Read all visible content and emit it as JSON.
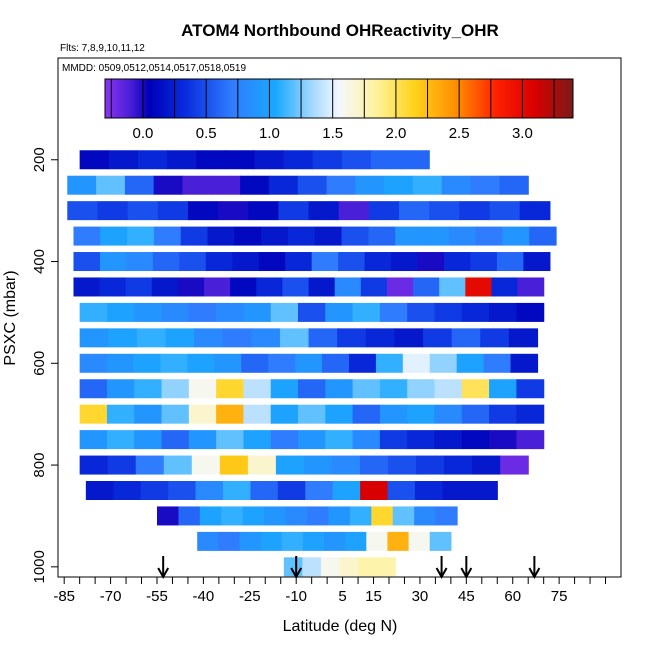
{
  "chart_data": {
    "type": "heatmap",
    "title": "ATOM4 Northbound OHReactivity_OHR",
    "subtitle_flights": "Flts: 7,8,9,10,11,12",
    "subtitle_dates": "MMDD: 0509,0512,0514,0517,0518,0519",
    "xlabel": "Latitude (deg N)",
    "ylabel": "PSXC (mbar)",
    "xlim": [
      -87,
      95
    ],
    "ylim": [
      1020,
      0
    ],
    "xticks": [
      -85,
      -70,
      -55,
      -40,
      -25,
      -10,
      5,
      15,
      30,
      45,
      60,
      75
    ],
    "yticks": [
      200,
      400,
      600,
      800,
      1000
    ],
    "colorbar": {
      "range": [
        -0.3,
        3.4
      ],
      "ticks": [
        0.0,
        0.5,
        1.0,
        1.5,
        2.0,
        2.5,
        3.0
      ],
      "tick_labels": [
        "0.0",
        "0.5",
        "1.0",
        "1.5",
        "2.0",
        "2.5",
        "3.0"
      ],
      "stops": [
        {
          "v": -0.3,
          "c": "#8b35f0"
        },
        {
          "v": -0.1,
          "c": "#4a1fd8"
        },
        {
          "v": 0.05,
          "c": "#0000b8"
        },
        {
          "v": 0.35,
          "c": "#0a2fe0"
        },
        {
          "v": 0.7,
          "c": "#2f7cff"
        },
        {
          "v": 1.05,
          "c": "#1aa8ff"
        },
        {
          "v": 1.35,
          "c": "#a9daff"
        },
        {
          "v": 1.55,
          "c": "#f4f8ff"
        },
        {
          "v": 1.85,
          "c": "#fff29a"
        },
        {
          "v": 2.15,
          "c": "#ffd21a"
        },
        {
          "v": 2.5,
          "c": "#ff8800"
        },
        {
          "v": 2.8,
          "c": "#ff1e00"
        },
        {
          "v": 3.1,
          "c": "#d80000"
        },
        {
          "v": 3.4,
          "c": "#7a1a1a"
        }
      ]
    },
    "arrow_latitudes": [
      -53,
      -10,
      37,
      45,
      67
    ],
    "rows": [
      {
        "p": 200,
        "lat_min": -80,
        "lat_max": 33,
        "values": [
          0.1,
          0.2,
          0.3,
          0.2,
          0.1,
          0.1,
          0.2,
          0.3,
          0.4,
          0.5,
          0.6,
          0.6
        ]
      },
      {
        "p": 250,
        "lat_min": -84,
        "lat_max": 65,
        "values": [
          0.9,
          1.2,
          0.6,
          0.0,
          -0.1,
          -0.1,
          0.1,
          0.3,
          0.5,
          0.7,
          0.9,
          1.0,
          1.1,
          0.8,
          0.7,
          0.6
        ]
      },
      {
        "p": 300,
        "lat_min": -84,
        "lat_max": 72,
        "values": [
          0.5,
          0.4,
          0.5,
          0.4,
          0.1,
          0.0,
          0.1,
          0.4,
          0.2,
          -0.1,
          0.4,
          0.6,
          0.5,
          0.4,
          0.5,
          0.3
        ]
      },
      {
        "p": 350,
        "lat_min": -82,
        "lat_max": 74,
        "values": [
          0.7,
          1.0,
          1.1,
          0.7,
          0.4,
          0.2,
          0.1,
          0.2,
          0.3,
          0.2,
          0.5,
          0.6,
          0.9,
          0.9,
          0.8,
          0.7,
          0.9,
          0.6
        ]
      },
      {
        "p": 400,
        "lat_min": -82,
        "lat_max": 72,
        "values": [
          0.5,
          0.9,
          0.8,
          0.6,
          0.5,
          0.3,
          0.2,
          0.1,
          0.3,
          0.7,
          0.5,
          0.3,
          0.2,
          0.0,
          0.3,
          0.4,
          0.6,
          0.2
        ]
      },
      {
        "p": 450,
        "lat_min": -82,
        "lat_max": 70,
        "values": [
          0.2,
          0.3,
          0.4,
          0.2,
          0.0,
          -0.1,
          0.1,
          0.3,
          0.5,
          0.2,
          0.8,
          0.4,
          -0.2,
          0.6,
          1.2,
          3.0,
          0.3,
          -0.1
        ]
      },
      {
        "p": 500,
        "lat_min": -80,
        "lat_max": 70,
        "values": [
          1.1,
          1.0,
          0.9,
          0.8,
          0.7,
          0.8,
          0.9,
          1.2,
          0.5,
          0.9,
          1.1,
          0.7,
          0.5,
          0.4,
          0.3,
          0.2,
          0.1
        ]
      },
      {
        "p": 550,
        "lat_min": -80,
        "lat_max": 68,
        "values": [
          0.9,
          1.0,
          1.1,
          1.0,
          0.8,
          0.7,
          0.8,
          1.2,
          0.6,
          0.4,
          0.3,
          0.2,
          0.4,
          0.6,
          0.4,
          0.2
        ]
      },
      {
        "p": 600,
        "lat_min": -80,
        "lat_max": 68,
        "values": [
          0.8,
          0.9,
          1.0,
          1.1,
          1.0,
          0.9,
          0.6,
          0.7,
          0.9,
          0.6,
          0.3,
          1.1,
          1.5,
          1.3,
          1.0,
          0.7,
          0.2
        ]
      },
      {
        "p": 650,
        "lat_min": -80,
        "lat_max": 70,
        "values": [
          0.6,
          0.9,
          1.1,
          1.3,
          1.6,
          2.1,
          1.4,
          1.0,
          0.6,
          0.9,
          1.2,
          1.1,
          1.3,
          1.4,
          2.0,
          1.0,
          0.4
        ]
      },
      {
        "p": 700,
        "lat_min": -80,
        "lat_max": 70,
        "values": [
          2.1,
          1.1,
          0.9,
          1.2,
          1.7,
          2.3,
          1.4,
          1.0,
          1.2,
          1.0,
          0.6,
          0.9,
          1.0,
          0.8,
          0.6,
          0.4,
          0.3
        ]
      },
      {
        "p": 750,
        "lat_min": -80,
        "lat_max": 70,
        "values": [
          0.9,
          1.1,
          0.9,
          0.6,
          0.9,
          1.2,
          1.0,
          0.7,
          0.9,
          1.1,
          0.8,
          0.4,
          0.3,
          0.2,
          0.1,
          0.0,
          -0.1
        ]
      },
      {
        "p": 800,
        "lat_min": -80,
        "lat_max": 65,
        "values": [
          0.3,
          0.4,
          0.7,
          1.2,
          1.6,
          2.2,
          1.7,
          1.0,
          0.9,
          0.8,
          0.6,
          0.5,
          0.4,
          0.3,
          0.2,
          -0.2
        ]
      },
      {
        "p": 850,
        "lat_min": -78,
        "lat_max": 55,
        "values": [
          0.2,
          0.3,
          0.4,
          0.5,
          0.8,
          1.1,
          0.6,
          0.4,
          0.7,
          1.0,
          3.1,
          0.5,
          0.3,
          0.2,
          0.2
        ]
      },
      {
        "p": 900,
        "lat_min": -55,
        "lat_max": 42,
        "values": [
          0.0,
          0.6,
          1.0,
          1.1,
          1.0,
          0.9,
          0.8,
          0.7,
          0.9,
          1.1,
          2.1,
          1.2,
          0.8,
          0.7
        ]
      },
      {
        "p": 950,
        "lat_min": -42,
        "lat_max": 40,
        "values": [
          0.8,
          0.7,
          0.9,
          1.0,
          1.1,
          1.0,
          0.9,
          1.0,
          1.6,
          2.3,
          1.6,
          1.2
        ]
      },
      {
        "p": 1000,
        "lat_min": -14,
        "lat_max": 22,
        "values": [
          1.2,
          1.4,
          1.6,
          1.7,
          1.8,
          1.8
        ]
      }
    ]
  }
}
